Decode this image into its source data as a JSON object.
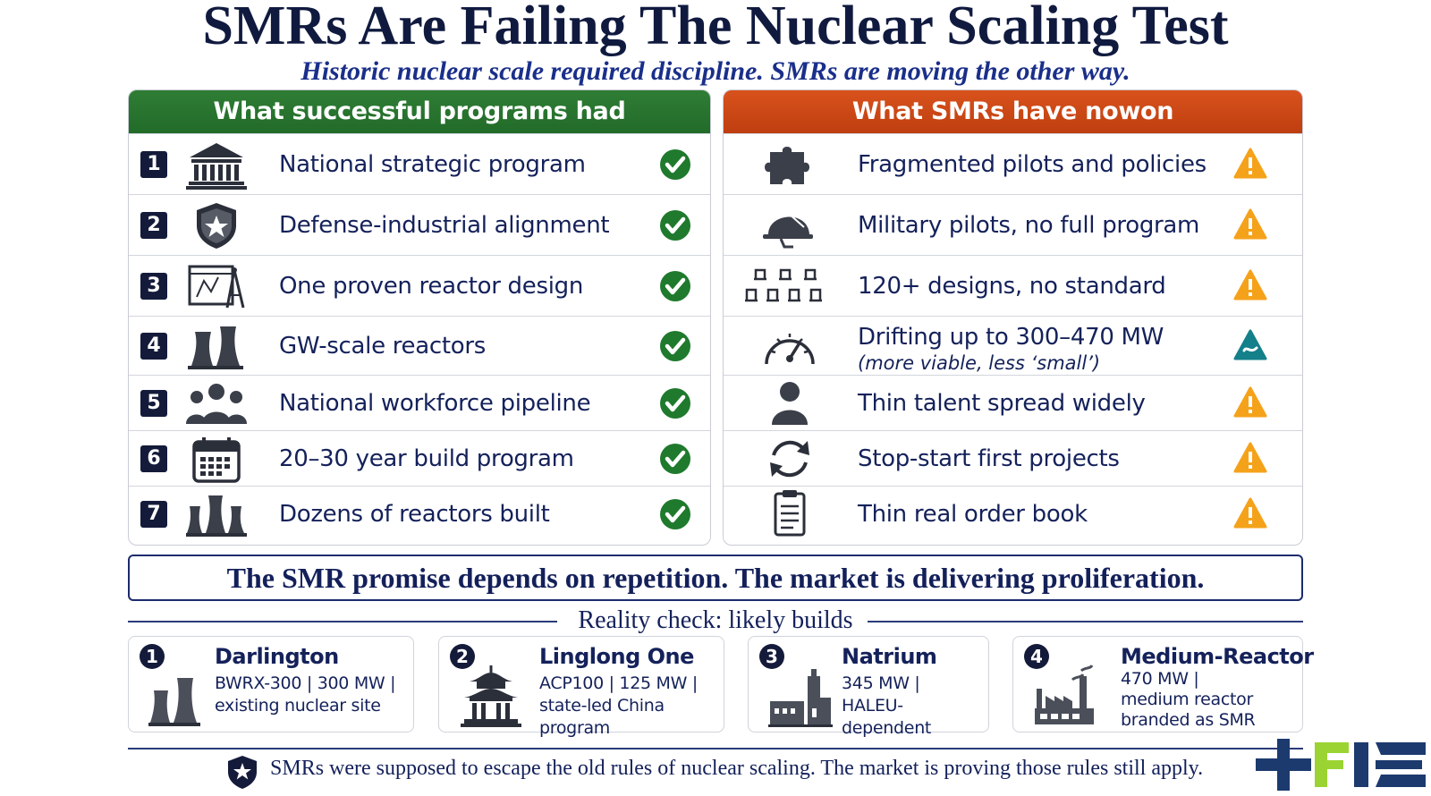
{
  "title": "SMRs Are Failing The Nuclear Scaling Test",
  "subtitle": "Historic nuclear scale required discipline. SMRs are moving the other way.",
  "left_panel": {
    "header": "What successful programs had",
    "rows": [
      {
        "num": "1",
        "label": "National strategic program",
        "icon": "government-building-icon",
        "status": "check-icon"
      },
      {
        "num": "2",
        "label": "Defense-industrial alignment",
        "icon": "shield-star-icon",
        "status": "check-icon"
      },
      {
        "num": "3",
        "label": "One proven reactor design",
        "icon": "blueprint-compass-icon",
        "status": "check-icon"
      },
      {
        "num": "4",
        "label": "GW-scale reactors",
        "icon": "cooling-towers-icon",
        "status": "check-icon"
      },
      {
        "num": "5",
        "label": "National workforce pipeline",
        "icon": "people-group-icon",
        "status": "check-icon"
      },
      {
        "num": "6",
        "label": "20–30 year build program",
        "icon": "calendar-icon",
        "status": "check-icon"
      },
      {
        "num": "7",
        "label": "Dozens of reactors built",
        "icon": "many-towers-icon",
        "status": "check-icon"
      }
    ]
  },
  "right_panel": {
    "header": "What SMRs have nowon",
    "rows": [
      {
        "label": "Fragmented pilots and policies",
        "icon": "puzzle-piece-icon",
        "status": "warning-icon"
      },
      {
        "label": "Military pilots, no full program",
        "icon": "military-helmet-icon",
        "status": "warning-icon"
      },
      {
        "label": "120+ designs, no standard",
        "icon": "many-designs-icon",
        "status": "warning-icon"
      },
      {
        "label": "Drifting up to 300–470 MW",
        "sublabel": "(more viable, less ‘small’)",
        "icon": "gauge-icon",
        "status": "drift-icon"
      },
      {
        "label": "Thin talent spread widely",
        "icon": "person-icon",
        "status": "warning-icon"
      },
      {
        "label": "Stop-start first projects",
        "icon": "refresh-arrows-icon",
        "status": "warning-icon"
      },
      {
        "label": "Thin real order book",
        "icon": "clipboard-icon",
        "status": "warning-icon"
      }
    ]
  },
  "banner": "The SMR promise depends on repetition. The market is delivering proliferation.",
  "reality_check": {
    "title": "Reality check: likely builds",
    "cards": [
      {
        "num": "1",
        "name": "Darlington",
        "lines": [
          "BWRX-300  |  300 MW  |",
          "existing nuclear site"
        ],
        "icon": "cooling-towers-icon"
      },
      {
        "num": "2",
        "name": "Linglong One",
        "lines": [
          "ACP100  |  125 MW  |",
          "state-led China program"
        ],
        "icon": "pagoda-icon"
      },
      {
        "num": "3",
        "name": "Natrium",
        "lines": [
          "345 MW  |",
          "HALEU-dependent"
        ],
        "icon": "plant-icon"
      },
      {
        "num": "4",
        "name": "Medium-Reactor",
        "lines": [
          "470 MW  |",
          "medium reactor",
          "branded as SMR"
        ],
        "icon": "factory-icon"
      }
    ]
  },
  "footer": "SMRs were supposed to escape the old rules of nuclear scaling. The market is proving those rules still apply.",
  "colors": {
    "green": "#226b29",
    "orange": "#cf4a18",
    "navy": "#13205a",
    "warning": "#f5a21b",
    "teal": "#13808a"
  }
}
